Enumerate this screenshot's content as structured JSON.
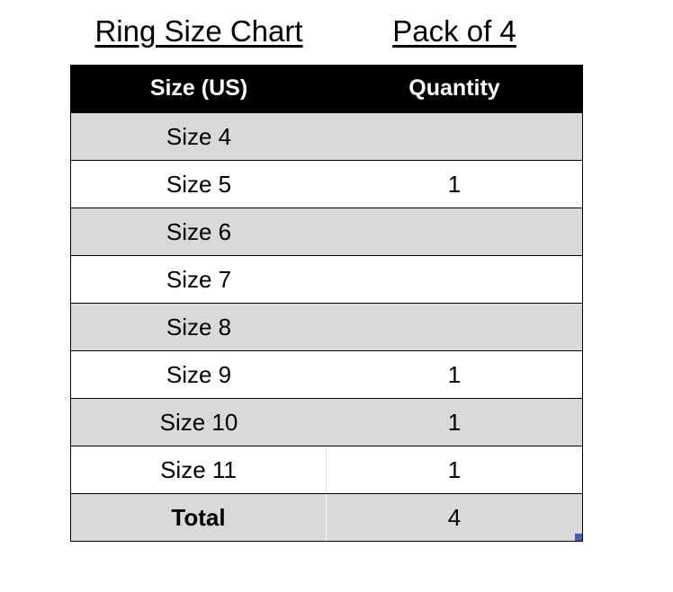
{
  "titles": {
    "chart": "Ring Size Chart",
    "pack": "Pack of 4"
  },
  "table": {
    "headers": [
      "Size (US)",
      "Quantity"
    ],
    "rows": [
      {
        "size": "Size 4",
        "quantity": ""
      },
      {
        "size": "Size 5",
        "quantity": "1"
      },
      {
        "size": "Size 6",
        "quantity": ""
      },
      {
        "size": "Size 7",
        "quantity": ""
      },
      {
        "size": "Size 8",
        "quantity": ""
      },
      {
        "size": "Size 9",
        "quantity": "1"
      },
      {
        "size": "Size 10",
        "quantity": "1"
      },
      {
        "size": "Size 11",
        "quantity": "1"
      }
    ],
    "total": {
      "label": "Total",
      "quantity": "4"
    }
  },
  "colors": {
    "header_bg": "#000000",
    "band_gray": "#d9d9d9",
    "selection_handle": "#4a5bb0"
  }
}
